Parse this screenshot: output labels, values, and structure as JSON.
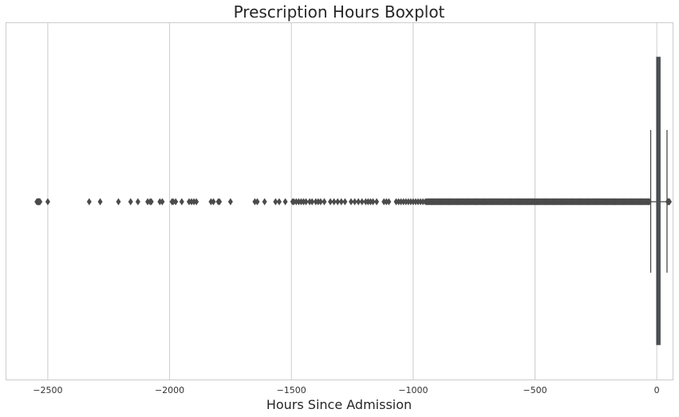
{
  "chart_data": {
    "type": "boxplot",
    "orientation": "horizontal",
    "title": "Prescription Hours Boxplot",
    "xlabel": "Hours Since Admission",
    "ylabel": "",
    "xlim": [
      -2670,
      65
    ],
    "xticks": [
      -2500,
      -2000,
      -1500,
      -1000,
      -500,
      0
    ],
    "xtick_labels": [
      "−2500",
      "−2000",
      "−1500",
      "−1000",
      "−500",
      "0"
    ],
    "grid": "vertical",
    "box": {
      "q1": 0,
      "median": 5,
      "q3": 13,
      "whisker_low": -25,
      "whisker_high": 42,
      "color": "#4c5a6e",
      "edge_color": "#4b4b4b"
    },
    "outliers": [
      -2545,
      -2542,
      -2540,
      -2538,
      -2536,
      -2534,
      -2532,
      -2500,
      -2330,
      -2285,
      -2210,
      -2160,
      -2130,
      -2090,
      -2080,
      -2075,
      -2040,
      -2030,
      -1990,
      -1985,
      -1975,
      -1950,
      -1920,
      -1910,
      -1900,
      -1890,
      -1830,
      -1820,
      -1800,
      -1795,
      -1750,
      -1650,
      -1640,
      -1610,
      -1565,
      -1550,
      -1525,
      -1495,
      -1490,
      -1480,
      -1470,
      -1460,
      -1450,
      -1440,
      -1425,
      -1415,
      -1400,
      -1390,
      -1380,
      -1365,
      -1340,
      -1325,
      -1310,
      -1295,
      -1280,
      -1255,
      -1240,
      -1225,
      -1210,
      -1195,
      -1185,
      -1175,
      -1165,
      -1150,
      -1120,
      -1110,
      -1100,
      -1070,
      -1060,
      -1050,
      -1040,
      -1030,
      -1020,
      -1010,
      -1000,
      -990,
      -980,
      -970,
      -960,
      -950
    ],
    "dense_outlier_range": [
      -945,
      -30
    ],
    "high_outliers": [
      45,
      48,
      50,
      52
    ]
  }
}
